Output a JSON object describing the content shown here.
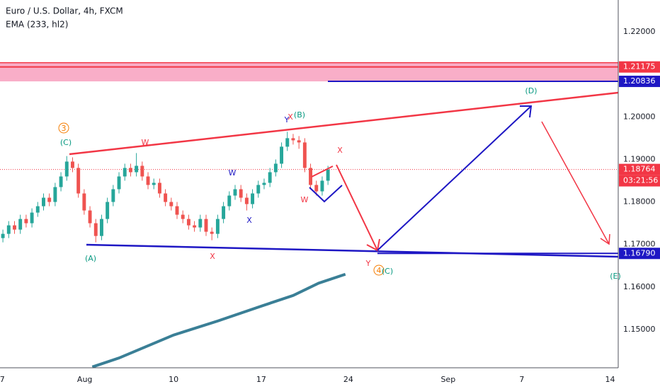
{
  "chart_data": {
    "type": "candlestick",
    "title": "Euro / U.S. Dollar, 4h, FXCM",
    "subtitle": "EMA (233, hl2)",
    "up_color": "#26a69a",
    "down_color": "#ef5350",
    "ohlc": [
      [
        1.1715,
        1.1735,
        1.1705,
        1.1725
      ],
      [
        1.1725,
        1.1755,
        1.1715,
        1.1745
      ],
      [
        1.1745,
        1.1755,
        1.1725,
        1.1735
      ],
      [
        1.1735,
        1.177,
        1.1725,
        1.176
      ],
      [
        1.176,
        1.177,
        1.174,
        1.175
      ],
      [
        1.175,
        1.1785,
        1.174,
        1.1775
      ],
      [
        1.1775,
        1.18,
        1.1765,
        1.179
      ],
      [
        1.179,
        1.182,
        1.178,
        1.181
      ],
      [
        1.181,
        1.182,
        1.179,
        1.18
      ],
      [
        1.18,
        1.1845,
        1.179,
        1.1835
      ],
      [
        1.1835,
        1.187,
        1.1825,
        1.186
      ],
      [
        1.186,
        1.1908,
        1.185,
        1.1895
      ],
      [
        1.1895,
        1.1905,
        1.187,
        1.188
      ],
      [
        1.188,
        1.189,
        1.181,
        1.182
      ],
      [
        1.182,
        1.183,
        1.177,
        1.178
      ],
      [
        1.178,
        1.179,
        1.174,
        1.175
      ],
      [
        1.175,
        1.176,
        1.1705,
        1.172
      ],
      [
        1.172,
        1.177,
        1.171,
        1.176
      ],
      [
        1.176,
        1.181,
        1.175,
        1.18
      ],
      [
        1.18,
        1.184,
        1.179,
        1.183
      ],
      [
        1.183,
        1.187,
        1.182,
        1.186
      ],
      [
        1.186,
        1.189,
        1.185,
        1.188
      ],
      [
        1.188,
        1.189,
        1.186,
        1.187
      ],
      [
        1.187,
        1.1915,
        1.186,
        1.1885
      ],
      [
        1.1885,
        1.1895,
        1.185,
        1.186
      ],
      [
        1.186,
        1.187,
        1.183,
        1.184
      ],
      [
        1.184,
        1.1855,
        1.183,
        1.1845
      ],
      [
        1.1845,
        1.1855,
        1.181,
        1.182
      ],
      [
        1.182,
        1.183,
        1.179,
        1.18
      ],
      [
        1.18,
        1.181,
        1.178,
        1.179
      ],
      [
        1.179,
        1.18,
        1.176,
        1.177
      ],
      [
        1.177,
        1.178,
        1.175,
        1.176
      ],
      [
        1.176,
        1.177,
        1.1735,
        1.1745
      ],
      [
        1.1745,
        1.1755,
        1.173,
        1.174
      ],
      [
        1.174,
        1.177,
        1.173,
        1.176
      ],
      [
        1.176,
        1.177,
        1.172,
        1.173
      ],
      [
        1.173,
        1.174,
        1.171,
        1.1725
      ],
      [
        1.1725,
        1.177,
        1.1715,
        1.176
      ],
      [
        1.176,
        1.18,
        1.175,
        1.179
      ],
      [
        1.179,
        1.1825,
        1.178,
        1.1815
      ],
      [
        1.1815,
        1.184,
        1.1805,
        1.183
      ],
      [
        1.183,
        1.184,
        1.18,
        1.181
      ],
      [
        1.181,
        1.182,
        1.178,
        1.1795
      ],
      [
        1.1795,
        1.183,
        1.1785,
        1.182
      ],
      [
        1.182,
        1.185,
        1.181,
        1.184
      ],
      [
        1.184,
        1.1855,
        1.183,
        1.1845
      ],
      [
        1.1845,
        1.188,
        1.1835,
        1.187
      ],
      [
        1.187,
        1.19,
        1.186,
        1.189
      ],
      [
        1.189,
        1.194,
        1.188,
        1.193
      ],
      [
        1.193,
        1.1965,
        1.192,
        1.195
      ],
      [
        1.195,
        1.196,
        1.1935,
        1.1945
      ],
      [
        1.1945,
        1.1955,
        1.1925,
        1.194
      ],
      [
        1.194,
        1.195,
        1.187,
        1.188
      ],
      [
        1.188,
        1.189,
        1.183,
        1.184
      ],
      [
        1.184,
        1.185,
        1.1815,
        1.1825
      ],
      [
        1.1825,
        1.186,
        1.1815,
        1.185
      ],
      [
        1.185,
        1.1885,
        1.184,
        1.18764
      ]
    ],
    "ema": {
      "color": "#3a7f96",
      "x": [
        15.4,
        20,
        29.4,
        37,
        44.5,
        50,
        54.4,
        59
      ],
      "values": [
        1.1412,
        1.1433,
        1.1487,
        1.152,
        1.1555,
        1.158,
        1.1609,
        1.163
      ]
    },
    "xlim": [
      -0.5,
      106
    ],
    "xticks": [
      {
        "value": -0.1,
        "label": "7"
      },
      {
        "value": 14.1,
        "label": "Aug"
      },
      {
        "value": 29.4,
        "label": "10"
      },
      {
        "value": 44.5,
        "label": "17"
      },
      {
        "value": 59.5,
        "label": "24"
      },
      {
        "value": 76.7,
        "label": "Sep"
      },
      {
        "value": 89.4,
        "label": "7"
      },
      {
        "value": 104.6,
        "label": "14"
      }
    ],
    "ylim": [
      1.141,
      1.2275
    ],
    "yticks": [
      {
        "value": 1.15,
        "label": "1.15000"
      },
      {
        "value": 1.16,
        "label": "1.16000"
      },
      {
        "value": 1.17,
        "label": "1.17000"
      },
      {
        "value": 1.18,
        "label": "1.18000"
      },
      {
        "value": 1.19,
        "label": "1.19000"
      },
      {
        "value": 1.2,
        "label": "1.20000"
      },
      {
        "value": 1.22,
        "label": "1.22000"
      }
    ],
    "grid": true,
    "price_labels": [
      {
        "value": 1.21175,
        "label": "1.21175",
        "color": "#f23645"
      },
      {
        "value": 1.20836,
        "label": "1.20836",
        "color": "#1e17c4"
      },
      {
        "value": 1.18764,
        "label": "1.18764",
        "color": "#f23645"
      },
      {
        "value": 1.1679,
        "label": "1.16790",
        "color": "#1e17c4"
      }
    ],
    "countdown": "03:21:56",
    "annotations": [
      "3",
      "(C)",
      "W",
      "Y",
      "(B)",
      "X",
      "W",
      "X",
      "W",
      "X",
      "(A)",
      "Y",
      "4",
      "(C)",
      "(D)",
      "(E)",
      "X"
    ]
  }
}
